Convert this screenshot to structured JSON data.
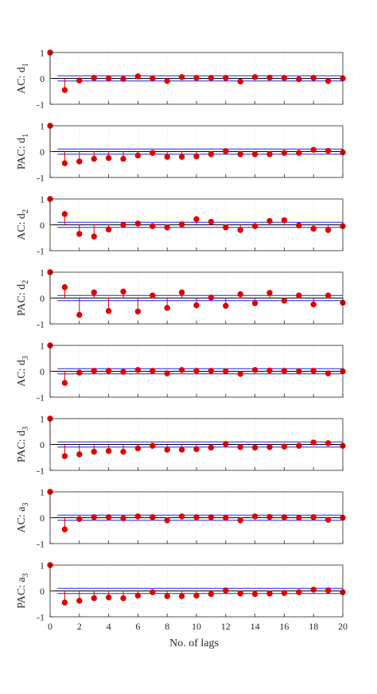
{
  "figure": {
    "xlabel": "No. of lags",
    "colors": {
      "stem": "#e00000",
      "bounds": "#2020e0",
      "zero": "#000000",
      "grid": "#d0d0d0",
      "axes": "#262626"
    }
  },
  "chart_data": [
    {
      "type": "stem",
      "ylabel_main": "AC: d",
      "ylabel_sub": "1",
      "xlim": [
        0,
        20
      ],
      "ylim": [
        -1,
        1
      ],
      "xticks": [
        0,
        2,
        4,
        6,
        8,
        10,
        12,
        14,
        16,
        18,
        20
      ],
      "yticks": [
        -1,
        0,
        1
      ],
      "confidence_bounds": [
        0.1,
        -0.1
      ],
      "grid": "vertical",
      "x": [
        0,
        1,
        2,
        3,
        4,
        5,
        6,
        7,
        8,
        9,
        10,
        11,
        12,
        13,
        14,
        15,
        16,
        17,
        18,
        19,
        20
      ],
      "values": [
        1,
        -0.45,
        -0.08,
        0.02,
        0.0,
        -0.02,
        0.08,
        0.0,
        -0.1,
        0.05,
        0.02,
        0.02,
        0.02,
        -0.12,
        0.05,
        0.03,
        0.02,
        -0.03,
        0.02,
        -0.1,
        0.0
      ]
    },
    {
      "type": "stem",
      "ylabel_main": "PAC: d",
      "ylabel_sub": "1",
      "xlim": [
        0,
        20
      ],
      "ylim": [
        -1,
        1
      ],
      "xticks": [
        0,
        2,
        4,
        6,
        8,
        10,
        12,
        14,
        16,
        18,
        20
      ],
      "yticks": [
        -1,
        0,
        1
      ],
      "confidence_bounds": [
        0.1,
        -0.1
      ],
      "grid": "vertical",
      "x": [
        0,
        1,
        2,
        3,
        4,
        5,
        6,
        7,
        8,
        9,
        10,
        11,
        12,
        13,
        14,
        15,
        16,
        17,
        18,
        19,
        20
      ],
      "values": [
        1,
        -0.45,
        -0.38,
        -0.28,
        -0.25,
        -0.28,
        -0.15,
        -0.05,
        -0.2,
        -0.2,
        -0.18,
        -0.1,
        0.02,
        -0.1,
        -0.1,
        -0.1,
        -0.05,
        -0.05,
        0.07,
        0.03,
        -0.03
      ]
    },
    {
      "type": "stem",
      "ylabel_main": "AC: d",
      "ylabel_sub": "2",
      "xlim": [
        0,
        20
      ],
      "ylim": [
        -1,
        1
      ],
      "xticks": [
        0,
        2,
        4,
        6,
        8,
        10,
        12,
        14,
        16,
        18,
        20
      ],
      "yticks": [
        -1,
        0,
        1
      ],
      "confidence_bounds": [
        0.1,
        -0.1
      ],
      "grid": "vertical",
      "x": [
        0,
        1,
        2,
        3,
        4,
        5,
        6,
        7,
        8,
        9,
        10,
        11,
        12,
        13,
        14,
        15,
        16,
        17,
        18,
        19,
        20
      ],
      "values": [
        1,
        0.42,
        -0.35,
        -0.45,
        -0.18,
        0.0,
        0.05,
        -0.05,
        -0.1,
        0.02,
        0.22,
        0.12,
        -0.1,
        -0.2,
        -0.05,
        0.15,
        0.18,
        -0.02,
        -0.15,
        -0.2,
        -0.05
      ]
    },
    {
      "type": "stem",
      "ylabel_main": "PAC: d",
      "ylabel_sub": "2",
      "xlim": [
        0,
        20
      ],
      "ylim": [
        -1,
        1
      ],
      "xticks": [
        0,
        2,
        4,
        6,
        8,
        10,
        12,
        14,
        16,
        18,
        20
      ],
      "yticks": [
        -1,
        0,
        1
      ],
      "confidence_bounds": [
        0.1,
        -0.1
      ],
      "grid": "vertical",
      "x": [
        0,
        1,
        2,
        3,
        4,
        5,
        6,
        7,
        8,
        9,
        10,
        11,
        12,
        13,
        14,
        15,
        16,
        17,
        18,
        19,
        20
      ],
      "values": [
        1,
        0.42,
        -0.65,
        0.22,
        -0.5,
        0.25,
        -0.52,
        0.1,
        -0.38,
        0.22,
        -0.28,
        0.02,
        -0.3,
        0.15,
        -0.2,
        0.2,
        -0.1,
        0.1,
        -0.25,
        0.1,
        -0.18
      ]
    },
    {
      "type": "stem",
      "ylabel_main": "AC: d",
      "ylabel_sub": "3",
      "xlim": [
        0,
        20
      ],
      "ylim": [
        -1,
        1
      ],
      "xticks": [
        0,
        2,
        4,
        6,
        8,
        10,
        12,
        14,
        16,
        18,
        20
      ],
      "yticks": [
        -1,
        0,
        1
      ],
      "confidence_bounds": [
        0.1,
        -0.1
      ],
      "grid": "vertical",
      "x": [
        0,
        1,
        2,
        3,
        4,
        5,
        6,
        7,
        8,
        9,
        10,
        11,
        12,
        13,
        14,
        15,
        16,
        17,
        18,
        19,
        20
      ],
      "values": [
        1,
        -0.45,
        -0.05,
        0.02,
        0.02,
        -0.02,
        0.05,
        0.02,
        -0.08,
        0.05,
        0.02,
        0.02,
        0.0,
        -0.1,
        0.05,
        0.03,
        0.02,
        0.0,
        0.02,
        -0.08,
        0.0
      ]
    },
    {
      "type": "stem",
      "ylabel_main": "PAC: d",
      "ylabel_sub": "3",
      "xlim": [
        0,
        20
      ],
      "ylim": [
        -1,
        1
      ],
      "xticks": [
        0,
        2,
        4,
        6,
        8,
        10,
        12,
        14,
        16,
        18,
        20
      ],
      "yticks": [
        -1,
        0,
        1
      ],
      "confidence_bounds": [
        0.1,
        -0.1
      ],
      "grid": "vertical",
      "x": [
        0,
        1,
        2,
        3,
        4,
        5,
        6,
        7,
        8,
        9,
        10,
        11,
        12,
        13,
        14,
        15,
        16,
        17,
        18,
        19,
        20
      ],
      "values": [
        1,
        -0.45,
        -0.38,
        -0.28,
        -0.25,
        -0.28,
        -0.15,
        -0.05,
        -0.2,
        -0.2,
        -0.18,
        -0.12,
        0.02,
        -0.1,
        -0.12,
        -0.1,
        -0.08,
        -0.05,
        0.08,
        0.05,
        -0.05
      ]
    },
    {
      "type": "stem",
      "ylabel_main": "AC: a",
      "ylabel_sub": "3",
      "xlim": [
        0,
        20
      ],
      "ylim": [
        -1,
        1
      ],
      "xticks": [
        0,
        2,
        4,
        6,
        8,
        10,
        12,
        14,
        16,
        18,
        20
      ],
      "yticks": [
        -1,
        0,
        1
      ],
      "confidence_bounds": [
        0.1,
        -0.1
      ],
      "grid": "vertical",
      "x": [
        0,
        1,
        2,
        3,
        4,
        5,
        6,
        7,
        8,
        9,
        10,
        11,
        12,
        13,
        14,
        15,
        16,
        17,
        18,
        19,
        20
      ],
      "values": [
        1,
        -0.45,
        -0.05,
        0.02,
        0.02,
        -0.02,
        0.05,
        0.02,
        -0.1,
        0.05,
        0.02,
        0.02,
        0.0,
        -0.1,
        0.05,
        0.03,
        0.02,
        0.0,
        0.02,
        -0.08,
        0.0
      ]
    },
    {
      "type": "stem",
      "ylabel_main": "PAC: a",
      "ylabel_sub": "3",
      "xlim": [
        0,
        20
      ],
      "ylim": [
        -1,
        1
      ],
      "xticks": [
        0,
        2,
        4,
        6,
        8,
        10,
        12,
        14,
        16,
        18,
        20
      ],
      "yticks": [
        -1,
        0,
        1
      ],
      "confidence_bounds": [
        0.1,
        -0.1
      ],
      "grid": "vertical",
      "x": [
        0,
        1,
        2,
        3,
        4,
        5,
        6,
        7,
        8,
        9,
        10,
        11,
        12,
        13,
        14,
        15,
        16,
        17,
        18,
        19,
        20
      ],
      "values": [
        1,
        -0.45,
        -0.38,
        -0.28,
        -0.25,
        -0.28,
        -0.18,
        -0.05,
        -0.2,
        -0.2,
        -0.18,
        -0.12,
        0.02,
        -0.1,
        -0.12,
        -0.1,
        -0.08,
        -0.05,
        0.05,
        0.02,
        -0.05
      ]
    }
  ]
}
